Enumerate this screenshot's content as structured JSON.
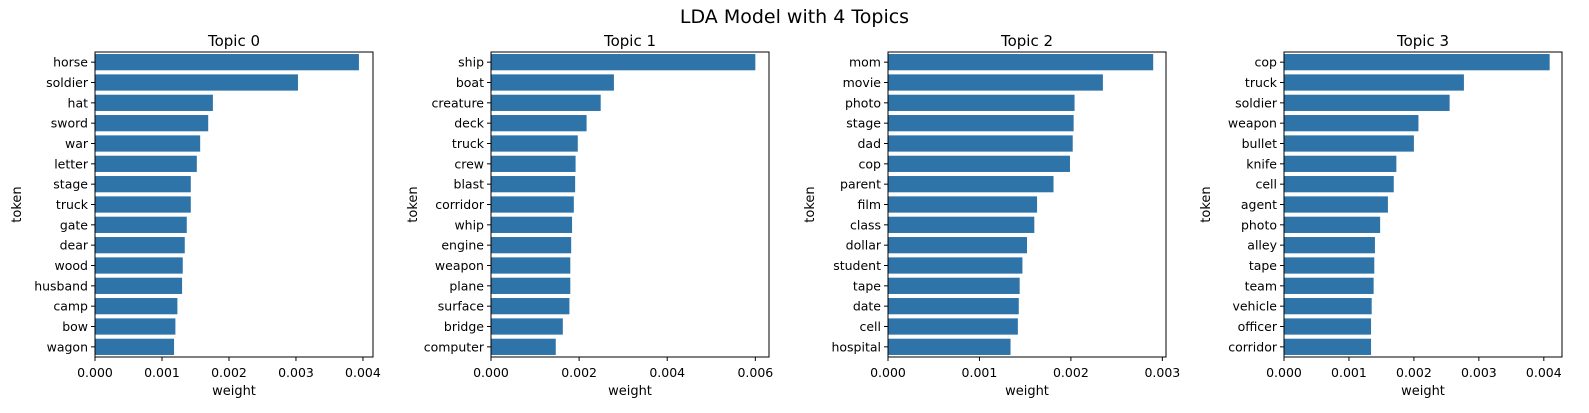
{
  "figure": {
    "suptitle": "LDA Model with 4 Topics",
    "bar_color": "#2f74a9"
  },
  "chart_data": [
    {
      "type": "bar",
      "orientation": "horizontal",
      "title": "Topic 0",
      "xlabel": "weight",
      "ylabel": "token",
      "xlim": [
        0,
        0.00415
      ],
      "xticks": [
        "0.000",
        "0.001",
        "0.002",
        "0.003",
        "0.004"
      ],
      "categories": [
        "horse",
        "soldier",
        "hat",
        "sword",
        "war",
        "letter",
        "stage",
        "truck",
        "gate",
        "dear",
        "wood",
        "husband",
        "camp",
        "bow",
        "wagon"
      ],
      "values": [
        0.00394,
        0.00303,
        0.00176,
        0.00169,
        0.00157,
        0.00152,
        0.00143,
        0.00143,
        0.00137,
        0.00134,
        0.00131,
        0.0013,
        0.00123,
        0.0012,
        0.00118
      ]
    },
    {
      "type": "bar",
      "orientation": "horizontal",
      "title": "Topic 1",
      "xlabel": "weight",
      "ylabel": "token",
      "xlim": [
        0,
        0.00631
      ],
      "xticks": [
        "0.000",
        "0.002",
        "0.004",
        "0.006"
      ],
      "categories": [
        "ship",
        "boat",
        "creature",
        "deck",
        "truck",
        "crew",
        "blast",
        "corridor",
        "whip",
        "engine",
        "weapon",
        "plane",
        "surface",
        "bridge",
        "computer"
      ],
      "values": [
        0.006,
        0.00279,
        0.00249,
        0.00217,
        0.00197,
        0.00192,
        0.00191,
        0.00188,
        0.00184,
        0.00182,
        0.0018,
        0.0018,
        0.00178,
        0.00163,
        0.00147
      ]
    },
    {
      "type": "bar",
      "orientation": "horizontal",
      "title": "Topic 2",
      "xlabel": "weight",
      "ylabel": "token",
      "xlim": [
        0,
        0.00304
      ],
      "xticks": [
        "0.000",
        "0.001",
        "0.002",
        "0.003"
      ],
      "categories": [
        "mom",
        "movie",
        "photo",
        "stage",
        "dad",
        "cop",
        "parent",
        "film",
        "class",
        "dollar",
        "student",
        "tape",
        "date",
        "cell",
        "hospital"
      ],
      "values": [
        0.0029,
        0.00235,
        0.00204,
        0.00203,
        0.00202,
        0.00199,
        0.00181,
        0.00163,
        0.0016,
        0.00152,
        0.00147,
        0.00144,
        0.00143,
        0.00142,
        0.00134
      ]
    },
    {
      "type": "bar",
      "orientation": "horizontal",
      "title": "Topic 3",
      "xlabel": "weight",
      "ylabel": "token",
      "xlim": [
        0,
        0.00428
      ],
      "xticks": [
        "0.000",
        "0.001",
        "0.002",
        "0.003",
        "0.004"
      ],
      "categories": [
        "cop",
        "truck",
        "soldier",
        "weapon",
        "bullet",
        "knife",
        "cell",
        "agent",
        "photo",
        "alley",
        "tape",
        "team",
        "vehicle",
        "officer",
        "corridor"
      ],
      "values": [
        0.00409,
        0.00277,
        0.00255,
        0.00207,
        0.002,
        0.00173,
        0.00169,
        0.0016,
        0.00148,
        0.0014,
        0.00139,
        0.00138,
        0.00135,
        0.00134,
        0.00134
      ]
    }
  ]
}
